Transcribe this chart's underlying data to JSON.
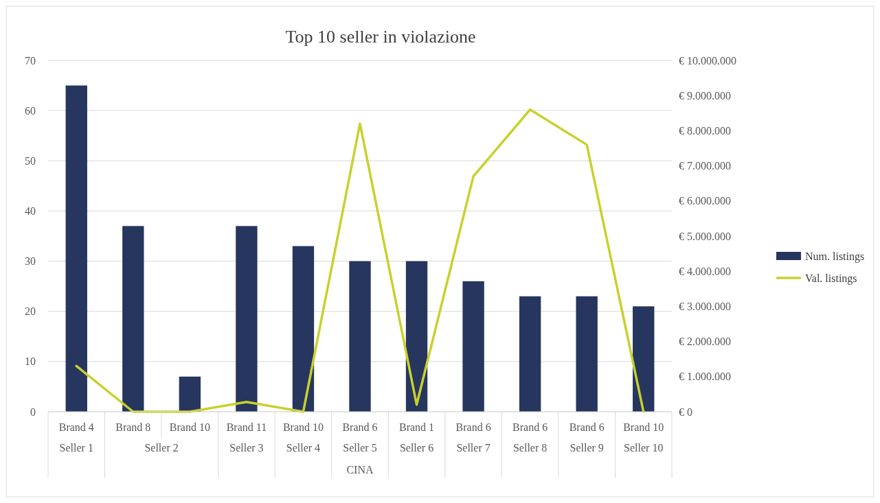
{
  "chart_data": {
    "type": "bar",
    "title": "Top 10 seller in violazione",
    "categories": [
      "Brand 4",
      "Brand 8",
      "Brand 10",
      "Brand 11",
      "Brand 10",
      "Brand 6",
      "Brand 1",
      "Brand 6",
      "Brand 6",
      "Brand 6",
      "Brand 10"
    ],
    "series": [
      {
        "name": "Num. listings",
        "color": "#27365e",
        "values": [
          65,
          37,
          7,
          37,
          33,
          30,
          30,
          26,
          23,
          23,
          21
        ]
      },
      {
        "name": "Val. listings",
        "type": "line",
        "axis": "y2",
        "color": "#c8d12c",
        "values": [
          1300000,
          0,
          0,
          280000,
          0,
          8200000,
          200000,
          6700000,
          8600000,
          7600000,
          0
        ]
      }
    ],
    "ylim": [
      0,
      70
    ],
    "yticks": [
      0,
      10,
      20,
      30,
      40,
      50,
      60,
      70
    ],
    "y2lim": [
      0,
      10000000
    ],
    "y2ticks": [
      {
        "value": 0,
        "label": "€ 0"
      },
      {
        "value": 1000000,
        "label": "€ 1.000.000"
      },
      {
        "value": 2000000,
        "label": "€ 2.000.000"
      },
      {
        "value": 3000000,
        "label": "€ 3.000.000"
      },
      {
        "value": 4000000,
        "label": "€ 4.000.000"
      },
      {
        "value": 5000000,
        "label": "€ 5.000.000"
      },
      {
        "value": 6000000,
        "label": "€ 6.000.000"
      },
      {
        "value": 7000000,
        "label": "€ 7.000.000"
      },
      {
        "value": 8000000,
        "label": "€ 8.000.000"
      },
      {
        "value": 9000000,
        "label": "€ 9.000.000"
      },
      {
        "value": 10000000,
        "label": "€ 10.000.000"
      }
    ],
    "annotations": [
      "Seller 1",
      "Seller 2",
      "Seller 3",
      "Seller 4",
      "Seller 5",
      "Seller 6",
      "Seller 7",
      "Seller 8",
      "Seller 9",
      "Seller 10",
      "CINA"
    ],
    "grid": "y",
    "legend": "right",
    "line_style": "solid",
    "marker": "none"
  }
}
